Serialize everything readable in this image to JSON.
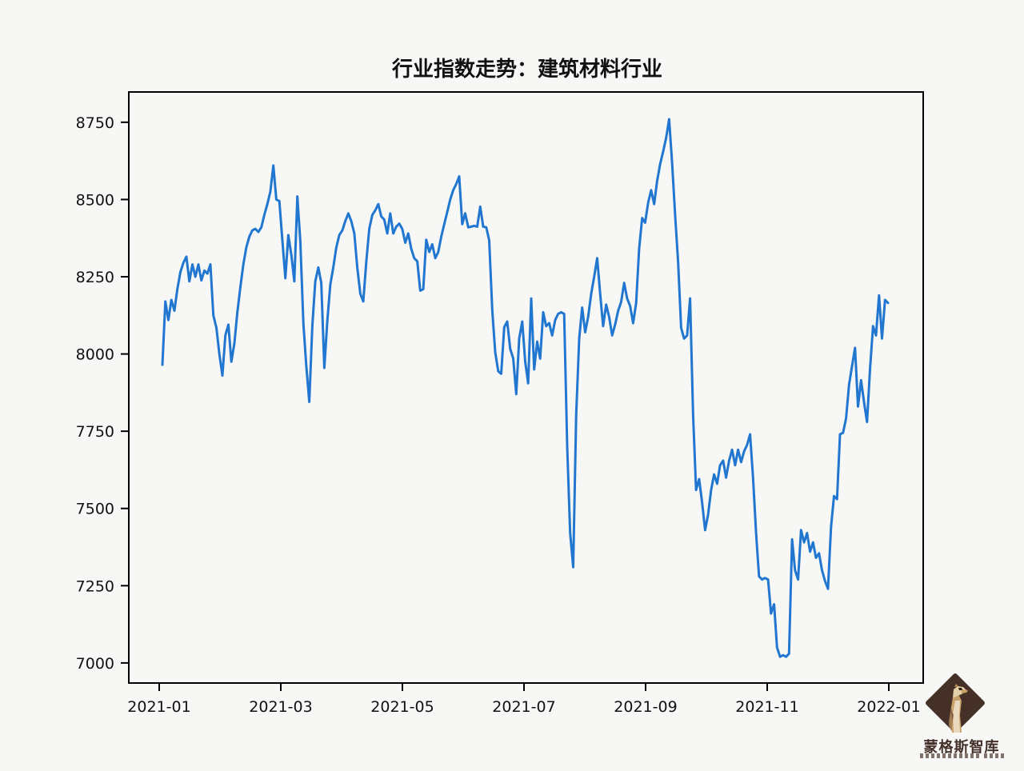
{
  "page": {
    "background_color": "#f7f7f5"
  },
  "chart_data": {
    "type": "line",
    "title": "行业指数走势：建筑材料行业",
    "xlabel": "",
    "ylabel": "",
    "grid": false,
    "legend": null,
    "line_color": "#2176d0",
    "axis_color": "#000000",
    "x_tick_labels": [
      "2021-01",
      "2021-03",
      "2021-05",
      "2021-07",
      "2021-09",
      "2021-11",
      "2022-01"
    ],
    "y_ticks": [
      7000,
      7250,
      7500,
      7750,
      8000,
      8250,
      8500,
      8750
    ],
    "y_tick_labels": [
      "7000",
      "7250",
      "7500",
      "7750",
      "8000",
      "8250",
      "8500",
      "8750"
    ],
    "ylim": [
      6935,
      8848
    ],
    "x_span_note": "daily index values from 2021-01 through 2022-01",
    "values": [
      7965,
      8170,
      8110,
      8175,
      8140,
      8210,
      8265,
      8295,
      8315,
      8235,
      8290,
      8250,
      8290,
      8238,
      8270,
      8260,
      8290,
      8125,
      8085,
      8000,
      7930,
      8060,
      8095,
      7975,
      8035,
      8135,
      8215,
      8290,
      8345,
      8380,
      8400,
      8405,
      8395,
      8410,
      8450,
      8485,
      8525,
      8610,
      8500,
      8495,
      8370,
      8245,
      8385,
      8320,
      8235,
      8510,
      8365,
      8100,
      7960,
      7845,
      8090,
      8235,
      8280,
      8230,
      7955,
      8105,
      8225,
      8280,
      8345,
      8385,
      8400,
      8430,
      8455,
      8430,
      8390,
      8280,
      8195,
      8170,
      8300,
      8405,
      8450,
      8465,
      8485,
      8445,
      8435,
      8390,
      8455,
      8390,
      8412,
      8422,
      8405,
      8360,
      8390,
      8340,
      8310,
      8300,
      8205,
      8210,
      8370,
      8330,
      8355,
      8310,
      8330,
      8380,
      8420,
      8460,
      8500,
      8530,
      8550,
      8575,
      8420,
      8455,
      8410,
      8412,
      8415,
      8412,
      8477,
      8412,
      8410,
      8368,
      8143,
      8006,
      7944,
      7936,
      8087,
      8105,
      8016,
      7986,
      7870,
      8050,
      8105,
      7975,
      7905,
      8180,
      7950,
      8040,
      7985,
      8135,
      8090,
      8100,
      8060,
      8110,
      8130,
      8135,
      8130,
      7700,
      7420,
      7310,
      7800,
      8050,
      8150,
      8070,
      8120,
      8195,
      8250,
      8310,
      8195,
      8090,
      8160,
      8120,
      8060,
      8095,
      8140,
      8168,
      8230,
      8180,
      8155,
      8100,
      8165,
      8340,
      8440,
      8425,
      8490,
      8530,
      8485,
      8560,
      8615,
      8655,
      8700,
      8760,
      8620,
      8450,
      8300,
      8085,
      8050,
      8060,
      8180,
      7800,
      7560,
      7595,
      7520,
      7430,
      7480,
      7560,
      7610,
      7580,
      7640,
      7655,
      7600,
      7655,
      7690,
      7640,
      7690,
      7650,
      7685,
      7705,
      7740,
      7600,
      7420,
      7280,
      7270,
      7275,
      7270,
      7160,
      7190,
      7050,
      7020,
      7025,
      7020,
      7030,
      7400,
      7300,
      7270,
      7430,
      7390,
      7420,
      7360,
      7390,
      7340,
      7355,
      7300,
      7265,
      7240,
      7440,
      7540,
      7530,
      7740,
      7745,
      7790,
      7900,
      7960,
      8020,
      7830,
      7915,
      7845,
      7780,
      7950,
      8090,
      8060,
      8190,
      8050,
      8175,
      8165
    ]
  },
  "logo": {
    "title": "蒙格斯智库",
    "diamond_color": "#453028",
    "title_color": "#44302b",
    "meerkat_body_color": "#c8a06b",
    "meerkat_light_color": "#ead9bd",
    "meerkat_shadow_color": "#8a6644"
  }
}
